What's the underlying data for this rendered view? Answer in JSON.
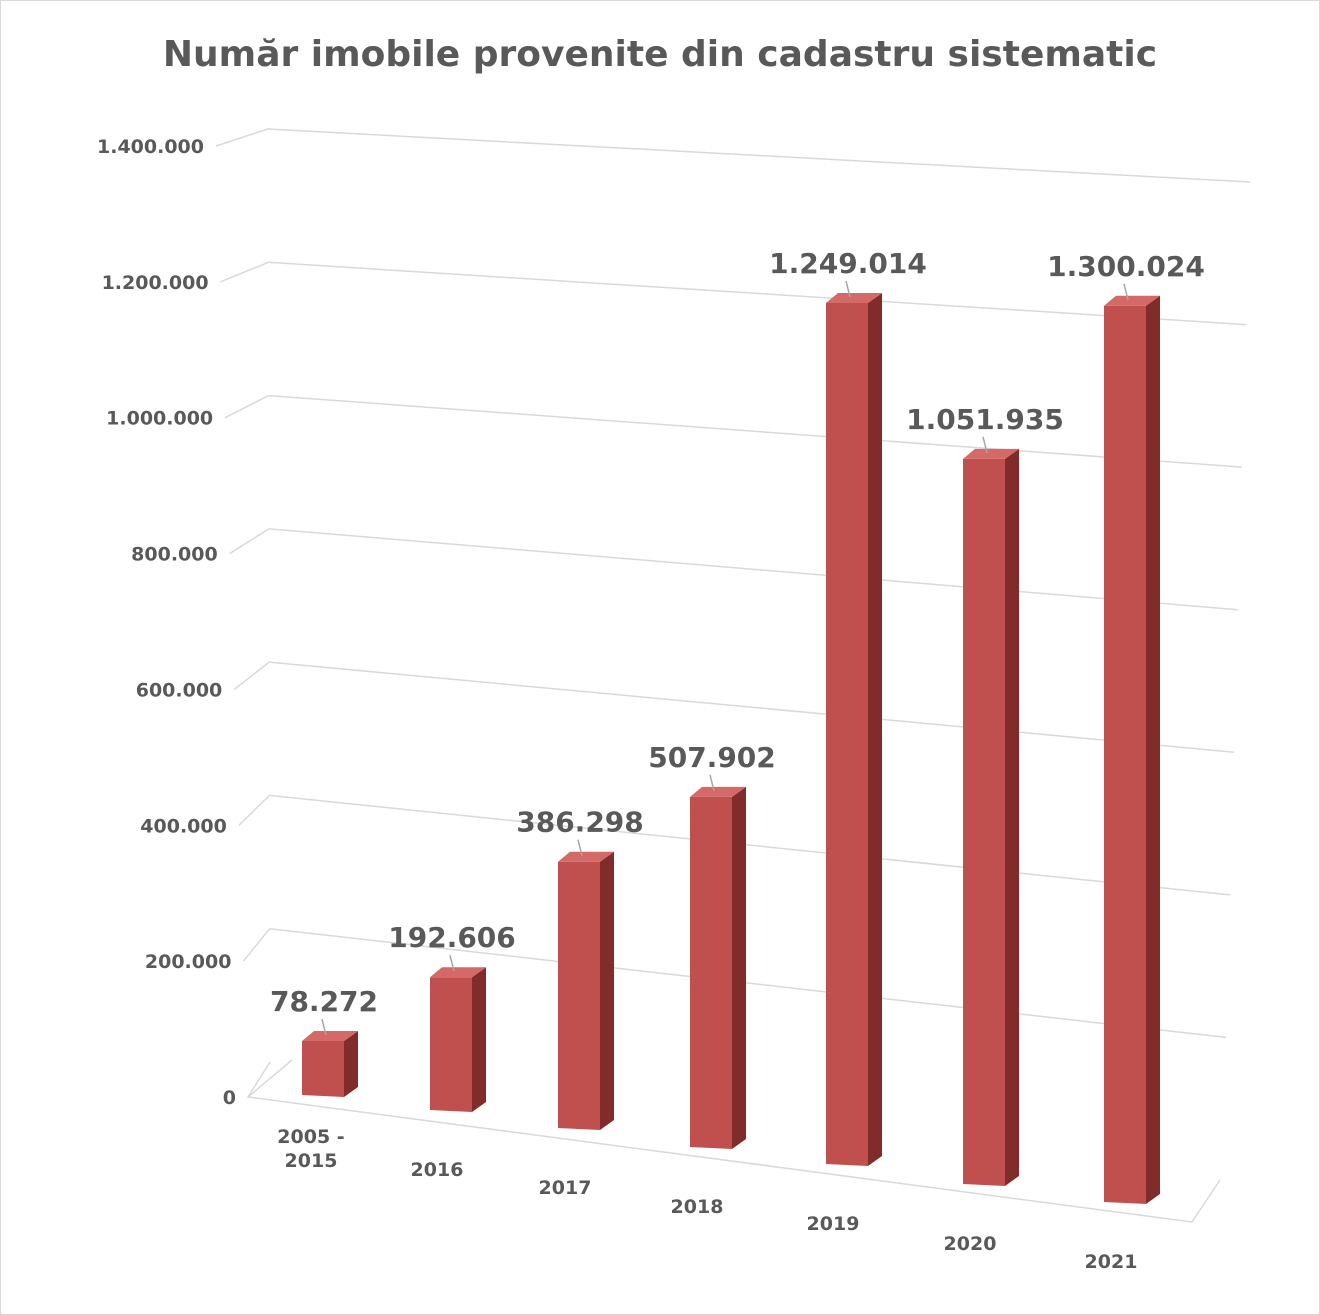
{
  "chart_data": {
    "type": "bar",
    "title": "Număr imobile provenite din cadastru sistematic",
    "categories": [
      "2005 - 2015",
      "2016",
      "2017",
      "2018",
      "2019",
      "2020",
      "2021"
    ],
    "values": [
      78272,
      192606,
      386298,
      507902,
      1249014,
      1051935,
      1300024
    ],
    "value_labels": [
      "78.272",
      "192.606",
      "386.298",
      "507.902",
      "1.249.014",
      "1.051.935",
      "1.300.024"
    ],
    "yticks": [
      "0",
      "200.000",
      "400.000",
      "600.000",
      "800.000",
      "1.000.000",
      "1.200.000",
      "1.400.000"
    ],
    "ylim": [
      0,
      1400000
    ],
    "grid": true,
    "legend": "none",
    "style": "3d",
    "colors": {
      "front": "#c0504d",
      "side": "#7f2c2a",
      "top": "#d46a67"
    }
  }
}
